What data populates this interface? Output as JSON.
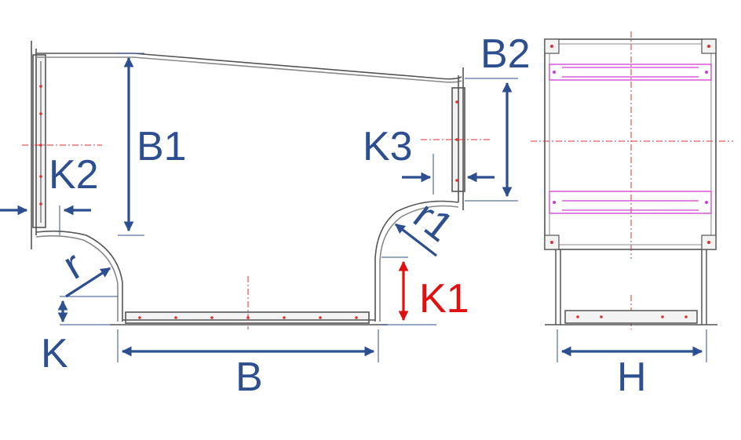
{
  "labels": {
    "b1": "B1",
    "b2": "B2",
    "k1": "K1",
    "k2": "K2",
    "k3": "K3",
    "k": "K",
    "r": "r",
    "r1": "r1",
    "b": "B",
    "h": "H"
  },
  "colors": {
    "dimension_blue": "#2e4f8f",
    "k1_red": "#e01010",
    "outline_gray": "#555555",
    "centerline_red": "#e03030",
    "flange_magenta": "#d040d0"
  }
}
